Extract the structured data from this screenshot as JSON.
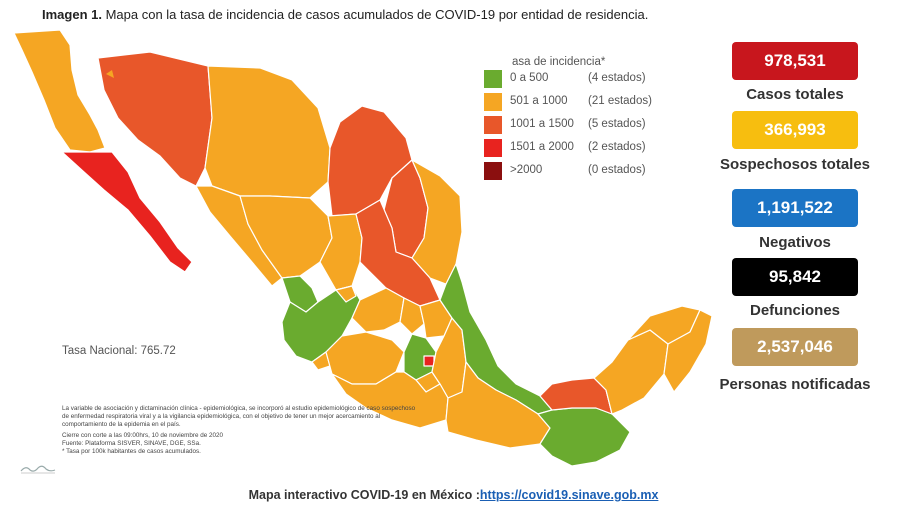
{
  "header": {
    "title_prefix": "Imagen 1.",
    "title_text": "Mapa con la tasa de incidencia de casos acumulados de COVID-19 por entidad de residencia."
  },
  "colors": {
    "green": "#6aab2f",
    "orange": "#f5a623",
    "dark_orange": "#e8572a",
    "red": "#e8231f",
    "dark_red": "#8b0f0f"
  },
  "legend": {
    "title": "asa de incidencia*",
    "rows": [
      {
        "range": "0 a   500",
        "count": "(4 estados)",
        "color": "#6aab2f"
      },
      {
        "range": "501 a  1000",
        "count": "(21 estados)",
        "color": "#f5a623"
      },
      {
        "range": "1001 a  1500",
        "count": "(5 estados)",
        "color": "#e8572a"
      },
      {
        "range": "1501 a  2000",
        "count": "(2 estados)",
        "color": "#e8231f"
      },
      {
        "range": ">2000",
        "count": "(0 estados)",
        "color": "#8b0f0f"
      }
    ]
  },
  "tasa_nacional": "Tasa Nacional: 765.72",
  "notes": {
    "paragraph1": "La variable de asociación y dictaminación clínica - epidemiológica, se incorporó al estudio epidemiológico de caso sospechoso de enfermedad respiratoria viral y a la vigilancia epidemiológica, con el objetivo de tener un mejor acercamiento al comportamiento de la epidemia en el país.",
    "paragraph2_line1": "Cierre con corte a las 09:00hrs, 10 de noviembre de 2020",
    "paragraph2_line2": "Fuente: Plataforma SISVER, SINAVE, DGE, SSa.",
    "paragraph2_line3": "* Tasa por 100k habitantes de casos acumulados."
  },
  "stats": [
    {
      "value": "978,531",
      "label": "Casos totales",
      "color": "#c8161d"
    },
    {
      "value": "366,993",
      "label": "Sospechosos totales",
      "color": "#f7be0f"
    },
    {
      "value": "1,191,522",
      "label": "Negativos",
      "color": "#1b74c5"
    },
    {
      "value": "95,842",
      "label": "Defunciones",
      "color": "#000000"
    },
    {
      "value": "2,537,046",
      "label": "Personas notificadas",
      "color": "#bf9a5c"
    }
  ],
  "footer": {
    "text": "Mapa interactivo COVID-19 en México :",
    "link": "https://covid19.sinave.gob.mx"
  }
}
